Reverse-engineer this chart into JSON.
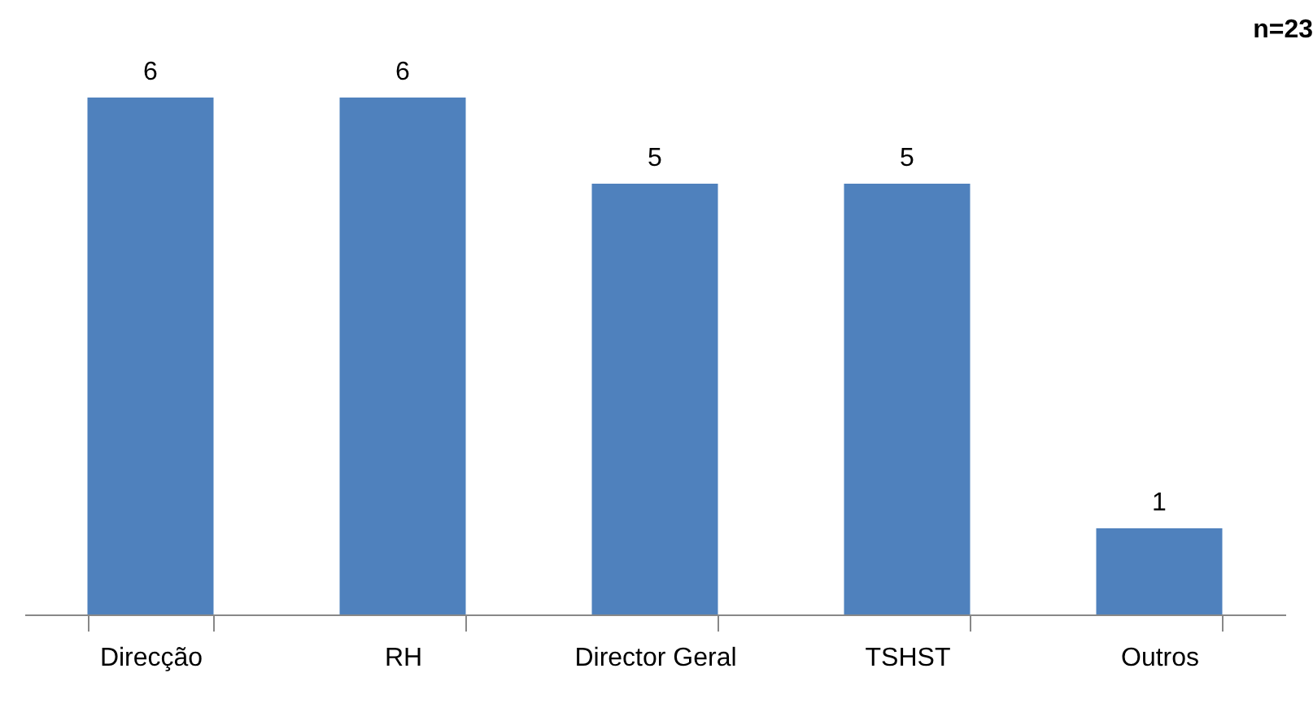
{
  "chart_data": {
    "type": "bar",
    "categories": [
      "Direcção",
      "RH",
      "Director Geral",
      "TSHST",
      "Outros"
    ],
    "values": [
      6,
      6,
      5,
      5,
      1
    ],
    "color": "#4f81bd",
    "data_labels": true,
    "annotations": [
      "n=23"
    ]
  }
}
